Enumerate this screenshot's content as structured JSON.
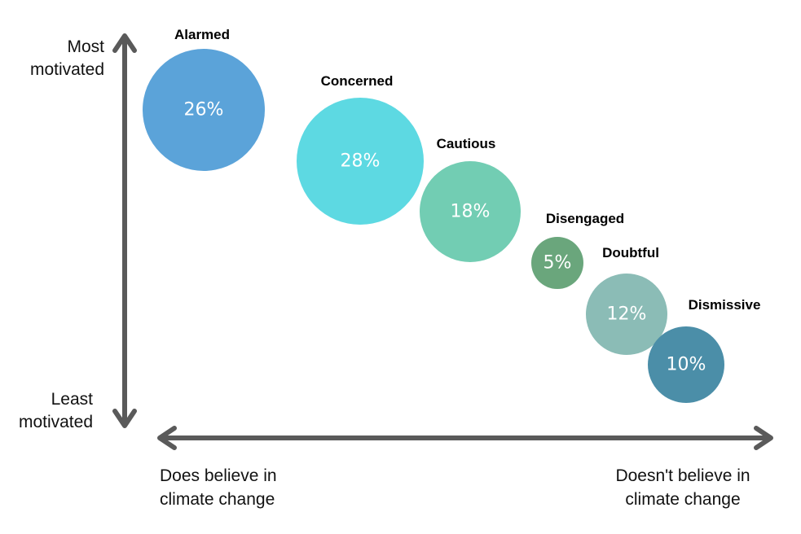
{
  "chart_data": {
    "type": "scatter",
    "y_axis": {
      "top_label": [
        "Most",
        "motivated"
      ],
      "bottom_label": [
        "Least",
        "motivated"
      ]
    },
    "x_axis": {
      "left_label": [
        "Does believe in",
        "climate change"
      ],
      "right_label": [
        "Doesn't believe in",
        "climate change"
      ]
    },
    "segments": [
      {
        "name": "Alarmed",
        "value": 26,
        "value_label": "26%",
        "color": "#5ba3d9"
      },
      {
        "name": "Concerned",
        "value": 28,
        "value_label": "28%",
        "color": "#5dd9e2"
      },
      {
        "name": "Cautious",
        "value": 18,
        "value_label": "18%",
        "color": "#72cdb3"
      },
      {
        "name": "Disengaged",
        "value": 5,
        "value_label": "5%",
        "color": "#6aa67c"
      },
      {
        "name": "Doubtful",
        "value": 12,
        "value_label": "12%",
        "color": "#8bbcb6"
      },
      {
        "name": "Dismissive",
        "value": 10,
        "value_label": "10%",
        "color": "#4b8ea8"
      }
    ]
  }
}
